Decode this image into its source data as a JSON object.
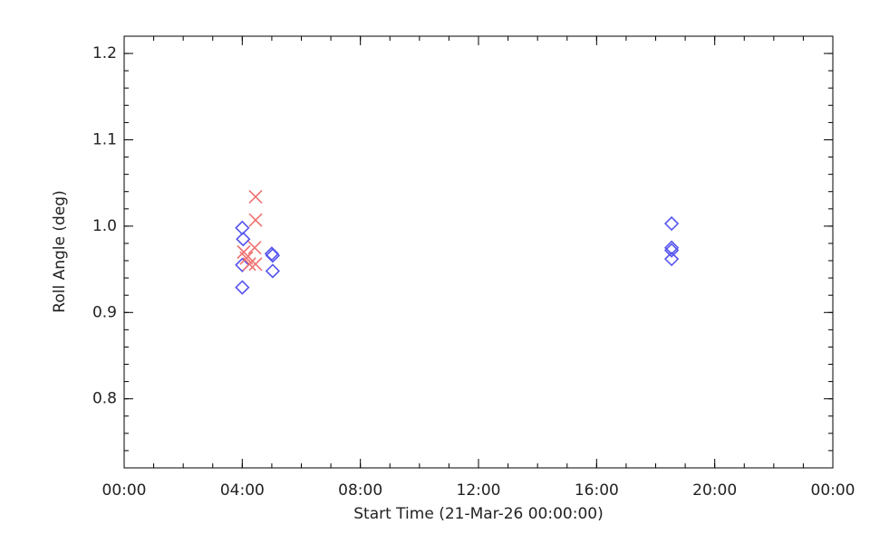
{
  "chart_data": {
    "type": "scatter",
    "xlabel": "Start Time (21-Mar-26 00:00:00)",
    "ylabel": "Roll Angle (deg)",
    "xlim": [
      0,
      24
    ],
    "xticks": [
      {
        "value": 0,
        "label": "00:00"
      },
      {
        "value": 4,
        "label": "04:00"
      },
      {
        "value": 8,
        "label": "08:00"
      },
      {
        "value": 12,
        "label": "12:00"
      },
      {
        "value": 16,
        "label": "16:00"
      },
      {
        "value": 20,
        "label": "20:00"
      },
      {
        "value": 24,
        "label": "00:00"
      }
    ],
    "ylim": [
      0.72,
      1.22
    ],
    "yticks": [
      {
        "value": 0.8,
        "label": "0.8"
      },
      {
        "value": 0.9,
        "label": "0.9"
      },
      {
        "value": 1.0,
        "label": "1.0"
      },
      {
        "value": 1.1,
        "label": "1.1"
      },
      {
        "value": 1.2,
        "label": "1.2"
      }
    ],
    "series": [
      {
        "color": "#5555ee",
        "marker": "diamond",
        "x": [
          4.0,
          4.03,
          4.0,
          4.0,
          5.0,
          5.03,
          5.03,
          18.54,
          18.54,
          18.54,
          18.54
        ],
        "values": [
          0.998,
          0.985,
          0.955,
          0.929,
          0.968,
          0.966,
          0.948,
          1.003,
          0.975,
          0.972,
          0.962
        ]
      },
      {
        "color": "#f07070",
        "marker": "cross",
        "x": [
          4.45,
          4.45,
          4.42,
          4.05,
          4.14,
          4.24,
          4.45
        ],
        "values": [
          1.034,
          1.007,
          0.975,
          0.97,
          0.963,
          0.956,
          0.956
        ]
      }
    ]
  }
}
